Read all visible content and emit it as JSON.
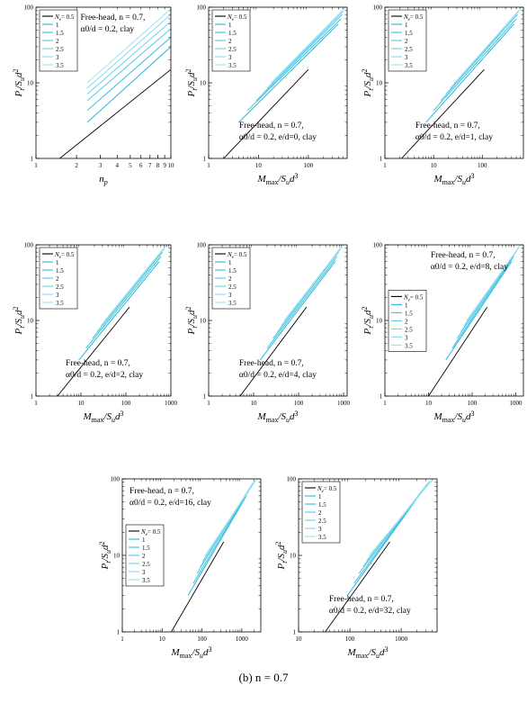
{
  "caption": "(b)   n = 0.7",
  "legend_label": "N",
  "legend_sub": "e",
  "ylabel_main": "P",
  "ylabel_sub1": "t",
  "ylabel_mid": "/S",
  "ylabel_sub2": "u",
  "ylabel_tail": "d",
  "ylabel_sup": "2",
  "colors": {
    "black": "#000000",
    "cyan": [
      "#2bb6d6",
      "#3cc0de",
      "#55c9e4",
      "#6fd2e9",
      "#86d9ed",
      "#9ee1f1"
    ]
  },
  "chart_data": [
    {
      "type": "line",
      "xlabel": "n_p",
      "xlim": [
        1,
        10
      ],
      "ylim": [
        1,
        100
      ],
      "xscale": "log",
      "yscale": "log",
      "xticks": [
        "1",
        "2",
        "3",
        "4",
        "5",
        "6",
        "7",
        "8",
        "9",
        "10"
      ],
      "yticks": [
        "1",
        "10",
        "100"
      ],
      "legend_position": "top-left",
      "annotation": [
        "Free-head,  n = 0.7,",
        "α0/d = 0.2,  clay"
      ],
      "annotation_position": "top-right",
      "series": [
        {
          "name": "0.5",
          "x": [
            1.5,
            10
          ],
          "y": [
            1.0,
            15
          ]
        },
        {
          "name": "1",
          "x": [
            2.4,
            10
          ],
          "y": [
            3.0,
            30
          ]
        },
        {
          "name": "1.5",
          "x": [
            2.4,
            10
          ],
          "y": [
            4.3,
            40
          ]
        },
        {
          "name": "2",
          "x": [
            2.4,
            10
          ],
          "y": [
            5.8,
            52
          ]
        },
        {
          "name": "2.5",
          "x": [
            2.4,
            10
          ],
          "y": [
            7.1,
            65
          ]
        },
        {
          "name": "3",
          "x": [
            2.4,
            10
          ],
          "y": [
            8.5,
            80
          ]
        },
        {
          "name": "3.5",
          "x": [
            2.4,
            10
          ],
          "y": [
            10,
            95
          ]
        }
      ]
    },
    {
      "type": "line",
      "xlabel": "Mmax/Sud3",
      "xlim": [
        1,
        600
      ],
      "ylim": [
        1,
        100
      ],
      "xscale": "log",
      "yscale": "log",
      "xticks": [
        "1",
        "10",
        "100"
      ],
      "yticks": [
        "1",
        "10",
        "100"
      ],
      "legend_position": "top-left",
      "annotation": [
        "Free-head,  n = 0.7,",
        "α0/d = 0.2,  e/d=0,  clay"
      ],
      "annotation_position": "bottom-right",
      "series": [
        {
          "name": "0.5",
          "x": [
            2,
            100
          ],
          "y": [
            1.0,
            15
          ]
        },
        {
          "name": "1",
          "x": [
            4,
            400
          ],
          "y": [
            3.0,
            60
          ]
        },
        {
          "name": "1.5",
          "x": [
            6,
            450
          ],
          "y": [
            4.3,
            70
          ]
        },
        {
          "name": "2",
          "x": [
            9,
            480
          ],
          "y": [
            5.8,
            80
          ]
        },
        {
          "name": "2.5",
          "x": [
            12,
            500
          ],
          "y": [
            7.1,
            88
          ]
        },
        {
          "name": "3",
          "x": [
            15,
            520
          ],
          "y": [
            8.5,
            95
          ]
        },
        {
          "name": "3.5",
          "x": [
            18,
            560
          ],
          "y": [
            10,
            100
          ]
        }
      ]
    },
    {
      "type": "line",
      "xlabel": "Mmax/Sud3",
      "xlim": [
        1,
        700
      ],
      "ylim": [
        1,
        100
      ],
      "xscale": "log",
      "yscale": "log",
      "xticks": [
        "1",
        "10",
        "100"
      ],
      "yticks": [
        "1",
        "10",
        "100"
      ],
      "legend_position": "top-left",
      "annotation": [
        "Free-head,  n = 0.7,",
        "α0/d = 0.2,  e/d=1,  clay"
      ],
      "annotation_position": "bottom-right",
      "series": [
        {
          "name": "0.5",
          "x": [
            2.2,
            110
          ],
          "y": [
            1.0,
            15
          ]
        },
        {
          "name": "1",
          "x": [
            7,
            450
          ],
          "y": [
            3.0,
            60
          ]
        },
        {
          "name": "1.5",
          "x": [
            10,
            500
          ],
          "y": [
            4.3,
            70
          ]
        },
        {
          "name": "2",
          "x": [
            14,
            530
          ],
          "y": [
            5.8,
            80
          ]
        },
        {
          "name": "2.5",
          "x": [
            18,
            560
          ],
          "y": [
            7.1,
            88
          ]
        },
        {
          "name": "3",
          "x": [
            22,
            600
          ],
          "y": [
            8.5,
            95
          ]
        },
        {
          "name": "3.5",
          "x": [
            27,
            650
          ],
          "y": [
            10,
            100
          ]
        }
      ]
    },
    {
      "type": "line",
      "xlabel": "Mmax/Sud3",
      "xlim": [
        1,
        1000
      ],
      "ylim": [
        1,
        100
      ],
      "xscale": "log",
      "yscale": "log",
      "xticks": [
        "1",
        "10",
        "100",
        "1000"
      ],
      "yticks": [
        "1",
        "10",
        "100"
      ],
      "legend_position": "top-left",
      "annotation": [
        "Free-head,  n = 0.7,",
        "α0/d = 0.2,  e/d=2,  clay"
      ],
      "annotation_position": "bottom-right",
      "series": [
        {
          "name": "0.5",
          "x": [
            3,
            120
          ],
          "y": [
            1.0,
            15
          ]
        },
        {
          "name": "1",
          "x": [
            9,
            550
          ],
          "y": [
            3.0,
            60
          ]
        },
        {
          "name": "1.5",
          "x": [
            13,
            600
          ],
          "y": [
            4.3,
            70
          ]
        },
        {
          "name": "2",
          "x": [
            18,
            650
          ],
          "y": [
            5.8,
            80
          ]
        },
        {
          "name": "2.5",
          "x": [
            23,
            700
          ],
          "y": [
            7.1,
            88
          ]
        },
        {
          "name": "3",
          "x": [
            28,
            750
          ],
          "y": [
            8.5,
            95
          ]
        },
        {
          "name": "3.5",
          "x": [
            34,
            800
          ],
          "y": [
            10,
            100
          ]
        }
      ]
    },
    {
      "type": "line",
      "xlabel": "Mmax/Sud3",
      "xlim": [
        1,
        1200
      ],
      "ylim": [
        1,
        100
      ],
      "xscale": "log",
      "yscale": "log",
      "xticks": [
        "1",
        "10",
        "100",
        "1000"
      ],
      "yticks": [
        "1",
        "10",
        "100"
      ],
      "legend_position": "top-left",
      "annotation": [
        "Free-head,  n = 0.7,",
        "α0/d = 0.2,  e/d=4,  clay"
      ],
      "annotation_position": "bottom-right",
      "series": [
        {
          "name": "0.5",
          "x": [
            5,
            150
          ],
          "y": [
            1.0,
            15
          ]
        },
        {
          "name": "1",
          "x": [
            14,
            650
          ],
          "y": [
            3.0,
            60
          ]
        },
        {
          "name": "1.5",
          "x": [
            20,
            720
          ],
          "y": [
            4.3,
            70
          ]
        },
        {
          "name": "2",
          "x": [
            27,
            780
          ],
          "y": [
            5.8,
            80
          ]
        },
        {
          "name": "2.5",
          "x": [
            34,
            850
          ],
          "y": [
            7.1,
            88
          ]
        },
        {
          "name": "3",
          "x": [
            41,
            900
          ],
          "y": [
            8.5,
            95
          ]
        },
        {
          "name": "3.5",
          "x": [
            48,
            1000
          ],
          "y": [
            10,
            100
          ]
        }
      ]
    },
    {
      "type": "line",
      "xlabel": "Mmax/Sud3",
      "xlim": [
        1,
        1500
      ],
      "ylim": [
        1,
        100
      ],
      "xscale": "log",
      "yscale": "log",
      "xticks": [
        "1",
        "10",
        "100",
        "1000"
      ],
      "yticks": [
        "1",
        "10",
        "100"
      ],
      "legend_position": "center-left",
      "annotation": [
        "Free-head,  n = 0.7,",
        "α0/d = 0.2,  e/d=8,  clay"
      ],
      "annotation_position": "top-right",
      "series": [
        {
          "name": "0.5",
          "x": [
            10,
            220
          ],
          "y": [
            1.0,
            15
          ]
        },
        {
          "name": "1",
          "x": [
            25,
            800
          ],
          "y": [
            3.0,
            60
          ]
        },
        {
          "name": "1.5",
          "x": [
            35,
            900
          ],
          "y": [
            4.3,
            70
          ]
        },
        {
          "name": "2",
          "x": [
            45,
            1000
          ],
          "y": [
            5.8,
            80
          ]
        },
        {
          "name": "2.5",
          "x": [
            55,
            1100
          ],
          "y": [
            7.1,
            88
          ]
        },
        {
          "name": "3",
          "x": [
            65,
            1200
          ],
          "y": [
            8.5,
            95
          ]
        },
        {
          "name": "3.5",
          "x": [
            75,
            1300
          ],
          "y": [
            10,
            100
          ]
        }
      ]
    },
    {
      "type": "line",
      "xlabel": "Mmax/Sud3",
      "xlim": [
        1,
        3000
      ],
      "ylim": [
        1,
        100
      ],
      "xscale": "log",
      "yscale": "log",
      "xticks": [
        "1",
        "10",
        "100",
        "1000"
      ],
      "yticks": [
        "1",
        "10",
        "100"
      ],
      "legend_position": "center-left",
      "annotation": [
        "Free-head,  n = 0.7,",
        "α0/d = 0.2,  e/d=16,  clay"
      ],
      "annotation_position": "top-left",
      "series": [
        {
          "name": "0.5",
          "x": [
            17,
            350
          ],
          "y": [
            1.0,
            15
          ]
        },
        {
          "name": "1",
          "x": [
            45,
            1300
          ],
          "y": [
            3.0,
            60
          ]
        },
        {
          "name": "1.5",
          "x": [
            60,
            1500
          ],
          "y": [
            4.3,
            70
          ]
        },
        {
          "name": "2",
          "x": [
            75,
            1700
          ],
          "y": [
            5.8,
            80
          ]
        },
        {
          "name": "2.5",
          "x": [
            90,
            1900
          ],
          "y": [
            7.1,
            88
          ]
        },
        {
          "name": "3",
          "x": [
            105,
            2100
          ],
          "y": [
            8.5,
            95
          ]
        },
        {
          "name": "3.5",
          "x": [
            120,
            2400
          ],
          "y": [
            10,
            100
          ]
        }
      ]
    },
    {
      "type": "line",
      "xlabel": "Mmax/Sud3",
      "xlim": [
        10,
        5000
      ],
      "ylim": [
        1,
        100
      ],
      "xscale": "log",
      "yscale": "log",
      "xticks": [
        "10",
        "100",
        "1000"
      ],
      "yticks": [
        "1",
        "10",
        "100"
      ],
      "legend_position": "top-left",
      "annotation": [
        "Free-head,  n = 0.7,",
        "α0/d = 0.2,  e/d=32,  clay"
      ],
      "annotation_position": "bottom-right",
      "series": [
        {
          "name": "0.5",
          "x": [
            33,
            600
          ],
          "y": [
            1.0,
            15
          ]
        },
        {
          "name": "1",
          "x": [
            90,
            2200
          ],
          "y": [
            3.0,
            60
          ]
        },
        {
          "name": "1.5",
          "x": [
            120,
            2600
          ],
          "y": [
            4.3,
            70
          ]
        },
        {
          "name": "2",
          "x": [
            150,
            3000
          ],
          "y": [
            5.8,
            80
          ]
        },
        {
          "name": "2.5",
          "x": [
            180,
            3300
          ],
          "y": [
            7.1,
            88
          ]
        },
        {
          "name": "3",
          "x": [
            210,
            3700
          ],
          "y": [
            8.5,
            95
          ]
        },
        {
          "name": "3.5",
          "x": [
            240,
            4200
          ],
          "y": [
            10,
            100
          ]
        }
      ]
    }
  ]
}
